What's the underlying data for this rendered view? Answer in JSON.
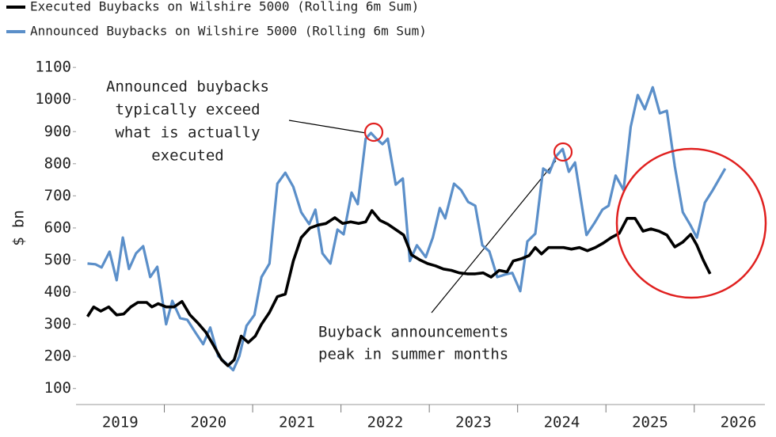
{
  "chart_data": {
    "type": "line",
    "y_label": "$ bn",
    "xlim": [
      2019,
      2026.8
    ],
    "ylim": [
      50,
      1125
    ],
    "xticks": [
      {
        "value": 2019.5,
        "label": "2019"
      },
      {
        "value": 2020.5,
        "label": "2020"
      },
      {
        "value": 2021.5,
        "label": "2021"
      },
      {
        "value": 2022.5,
        "label": "2022"
      },
      {
        "value": 2023.5,
        "label": "2023"
      },
      {
        "value": 2024.5,
        "label": "2024"
      },
      {
        "value": 2025.5,
        "label": "2025"
      },
      {
        "value": 2026.5,
        "label": "2026"
      }
    ],
    "yticks": [
      100,
      200,
      300,
      400,
      500,
      600,
      700,
      800,
      900,
      1000,
      1100
    ],
    "series": [
      {
        "name": "Executed Buybacks on Wilshire 5000 (Rolling 6m Sum)",
        "color": "#000000",
        "x": [
          2019.13,
          2019.2,
          2019.28,
          2019.37,
          2019.46,
          2019.54,
          2019.62,
          2019.7,
          2019.8,
          2019.86,
          2019.93,
          2020.02,
          2020.11,
          2020.2,
          2020.29,
          2020.38,
          2020.47,
          2020.56,
          2020.65,
          2020.72,
          2020.79,
          2020.87,
          2020.95,
          2021.03,
          2021.1,
          2021.19,
          2021.28,
          2021.37,
          2021.46,
          2021.55,
          2021.65,
          2021.74,
          2021.83,
          2021.93,
          2022.02,
          2022.11,
          2022.2,
          2022.28,
          2022.35,
          2022.44,
          2022.53,
          2022.62,
          2022.71,
          2022.8,
          2022.89,
          2022.98,
          2023.07,
          2023.16,
          2023.25,
          2023.34,
          2023.43,
          2023.52,
          2023.61,
          2023.7,
          2023.79,
          2023.88,
          2023.95,
          2024.04,
          2024.13,
          2024.2,
          2024.27,
          2024.35,
          2024.43,
          2024.52,
          2024.61,
          2024.7,
          2024.79,
          2024.88,
          2024.97,
          2025.06,
          2025.15,
          2025.24,
          2025.33,
          2025.42,
          2025.51,
          2025.6,
          2025.69,
          2025.78,
          2025.87,
          2025.96,
          2026.03,
          2026.1,
          2026.18
        ],
        "values": [
          324,
          354,
          341,
          354,
          329,
          332,
          354,
          368,
          368,
          354,
          364,
          354,
          354,
          371,
          329,
          304,
          275,
          233,
          189,
          171,
          189,
          263,
          243,
          263,
          300,
          337,
          386,
          394,
          497,
          570,
          600,
          609,
          614,
          632,
          614,
          619,
          614,
          619,
          654,
          624,
          612,
          595,
          578,
          516,
          501,
          489,
          482,
          472,
          468,
          460,
          457,
          457,
          460,
          447,
          468,
          463,
          497,
          504,
          514,
          539,
          519,
          539,
          539,
          539,
          534,
          539,
          529,
          539,
          553,
          570,
          583,
          630,
          630,
          590,
          597,
          590,
          578,
          541,
          556,
          580,
          546,
          501,
          457
        ]
      },
      {
        "name": "Announced Buybacks on Wilshire 5000 (Rolling 6m Sum)",
        "color": "#5b8fc9",
        "x": [
          2019.13,
          2019.22,
          2019.29,
          2019.38,
          2019.46,
          2019.53,
          2019.6,
          2019.68,
          2019.76,
          2019.84,
          2019.92,
          2020.02,
          2020.09,
          2020.18,
          2020.26,
          2020.35,
          2020.44,
          2020.52,
          2020.61,
          2020.71,
          2020.78,
          2020.85,
          2020.93,
          2021.02,
          2021.1,
          2021.19,
          2021.28,
          2021.37,
          2021.46,
          2021.55,
          2021.64,
          2021.71,
          2021.79,
          2021.88,
          2021.96,
          2022.03,
          2022.12,
          2022.19,
          2022.28,
          2022.34,
          2022.4,
          2022.47,
          2022.53,
          2022.62,
          2022.7,
          2022.78,
          2022.86,
          2022.96,
          2023.04,
          2023.12,
          2023.18,
          2023.28,
          2023.36,
          2023.44,
          2023.52,
          2023.6,
          2023.68,
          2023.77,
          2023.86,
          2023.94,
          2024.03,
          2024.11,
          2024.2,
          2024.29,
          2024.36,
          2024.43,
          2024.51,
          2024.58,
          2024.65,
          2024.78,
          2024.87,
          2024.96,
          2025.03,
          2025.11,
          2025.2,
          2025.28,
          2025.36,
          2025.44,
          2025.53,
          2025.61,
          2025.69,
          2025.78,
          2025.87,
          2025.96,
          2026.03,
          2026.12,
          2026.21,
          2026.35
        ],
        "values": [
          489,
          487,
          477,
          526,
          437,
          570,
          472,
          521,
          543,
          447,
          479,
          300,
          373,
          319,
          314,
          275,
          238,
          290,
          201,
          176,
          157,
          201,
          295,
          329,
          447,
          489,
          738,
          772,
          728,
          649,
          612,
          657,
          521,
          489,
          595,
          580,
          710,
          674,
          878,
          896,
          878,
          861,
          878,
          735,
          754,
          497,
          546,
          509,
          570,
          662,
          630,
          738,
          718,
          681,
          669,
          546,
          527,
          447,
          455,
          460,
          403,
          558,
          582,
          785,
          772,
          822,
          846,
          775,
          804,
          578,
          615,
          657,
          669,
          763,
          718,
          915,
          1014,
          970,
          1038,
          957,
          965,
          792,
          649,
          607,
          570,
          679,
          718,
          785
        ]
      }
    ],
    "annotations": [
      {
        "lines": [
          "Announced buybacks",
          "typically exceed",
          "what is actually",
          "executed"
        ]
      },
      {
        "lines": [
          "Buyback announcements",
          "peak in summer months"
        ]
      }
    ]
  }
}
